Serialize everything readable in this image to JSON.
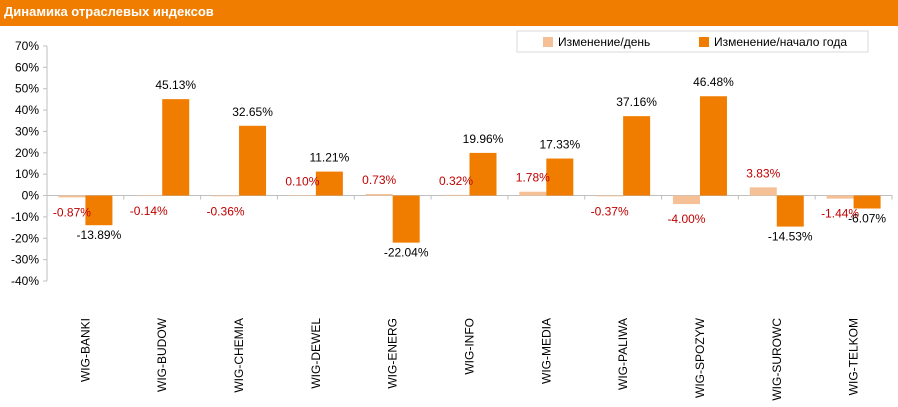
{
  "header": {
    "title": "Динамика отраслевых индексов"
  },
  "colors": {
    "header": "#f07d00",
    "series_day": "#f5c095",
    "series_ytd": "#f07d00",
    "day_label": "#c00000"
  },
  "chart_data": {
    "type": "bar",
    "title": "Динамика отраслевых индексов",
    "xlabel": "",
    "ylabel": "",
    "ylim": [
      -40,
      70
    ],
    "ytick_step": 10,
    "ytick_format": "percent",
    "grid": false,
    "legend_position": "top-right",
    "categories": [
      "WIG-BANKI",
      "WIG-BUDOW",
      "WIG-CHEMIA",
      "WIG-DEWEL",
      "WIG-ENERG",
      "WIG-INFO",
      "WIG-MEDIA",
      "WIG-PALIWA",
      "WIG-SPOZYW",
      "WIG-SUROWC",
      "WIG-TELKOM"
    ],
    "series": [
      {
        "name": "Изменение/день",
        "values": [
          -0.87,
          -0.14,
          -0.36,
          0.1,
          0.73,
          0.32,
          1.78,
          -0.37,
          -4.0,
          3.83,
          -1.44
        ],
        "labels": [
          "-0.87%",
          "-0.14%",
          "-0.36%",
          "0.10%",
          "0.73%",
          "0.32%",
          "1.78%",
          "-0.37%",
          "-4.00%",
          "3.83%",
          "-1.44%"
        ]
      },
      {
        "name": "Изменение/начало года",
        "values": [
          -13.89,
          45.13,
          32.65,
          11.21,
          -22.04,
          19.96,
          17.33,
          37.16,
          46.48,
          -14.53,
          -6.07
        ],
        "labels": [
          "-13.89%",
          "45.13%",
          "32.65%",
          "11.21%",
          "-22.04%",
          "19.96%",
          "17.33%",
          "37.16%",
          "46.48%",
          "-14.53%",
          "-6.07%"
        ]
      }
    ]
  }
}
